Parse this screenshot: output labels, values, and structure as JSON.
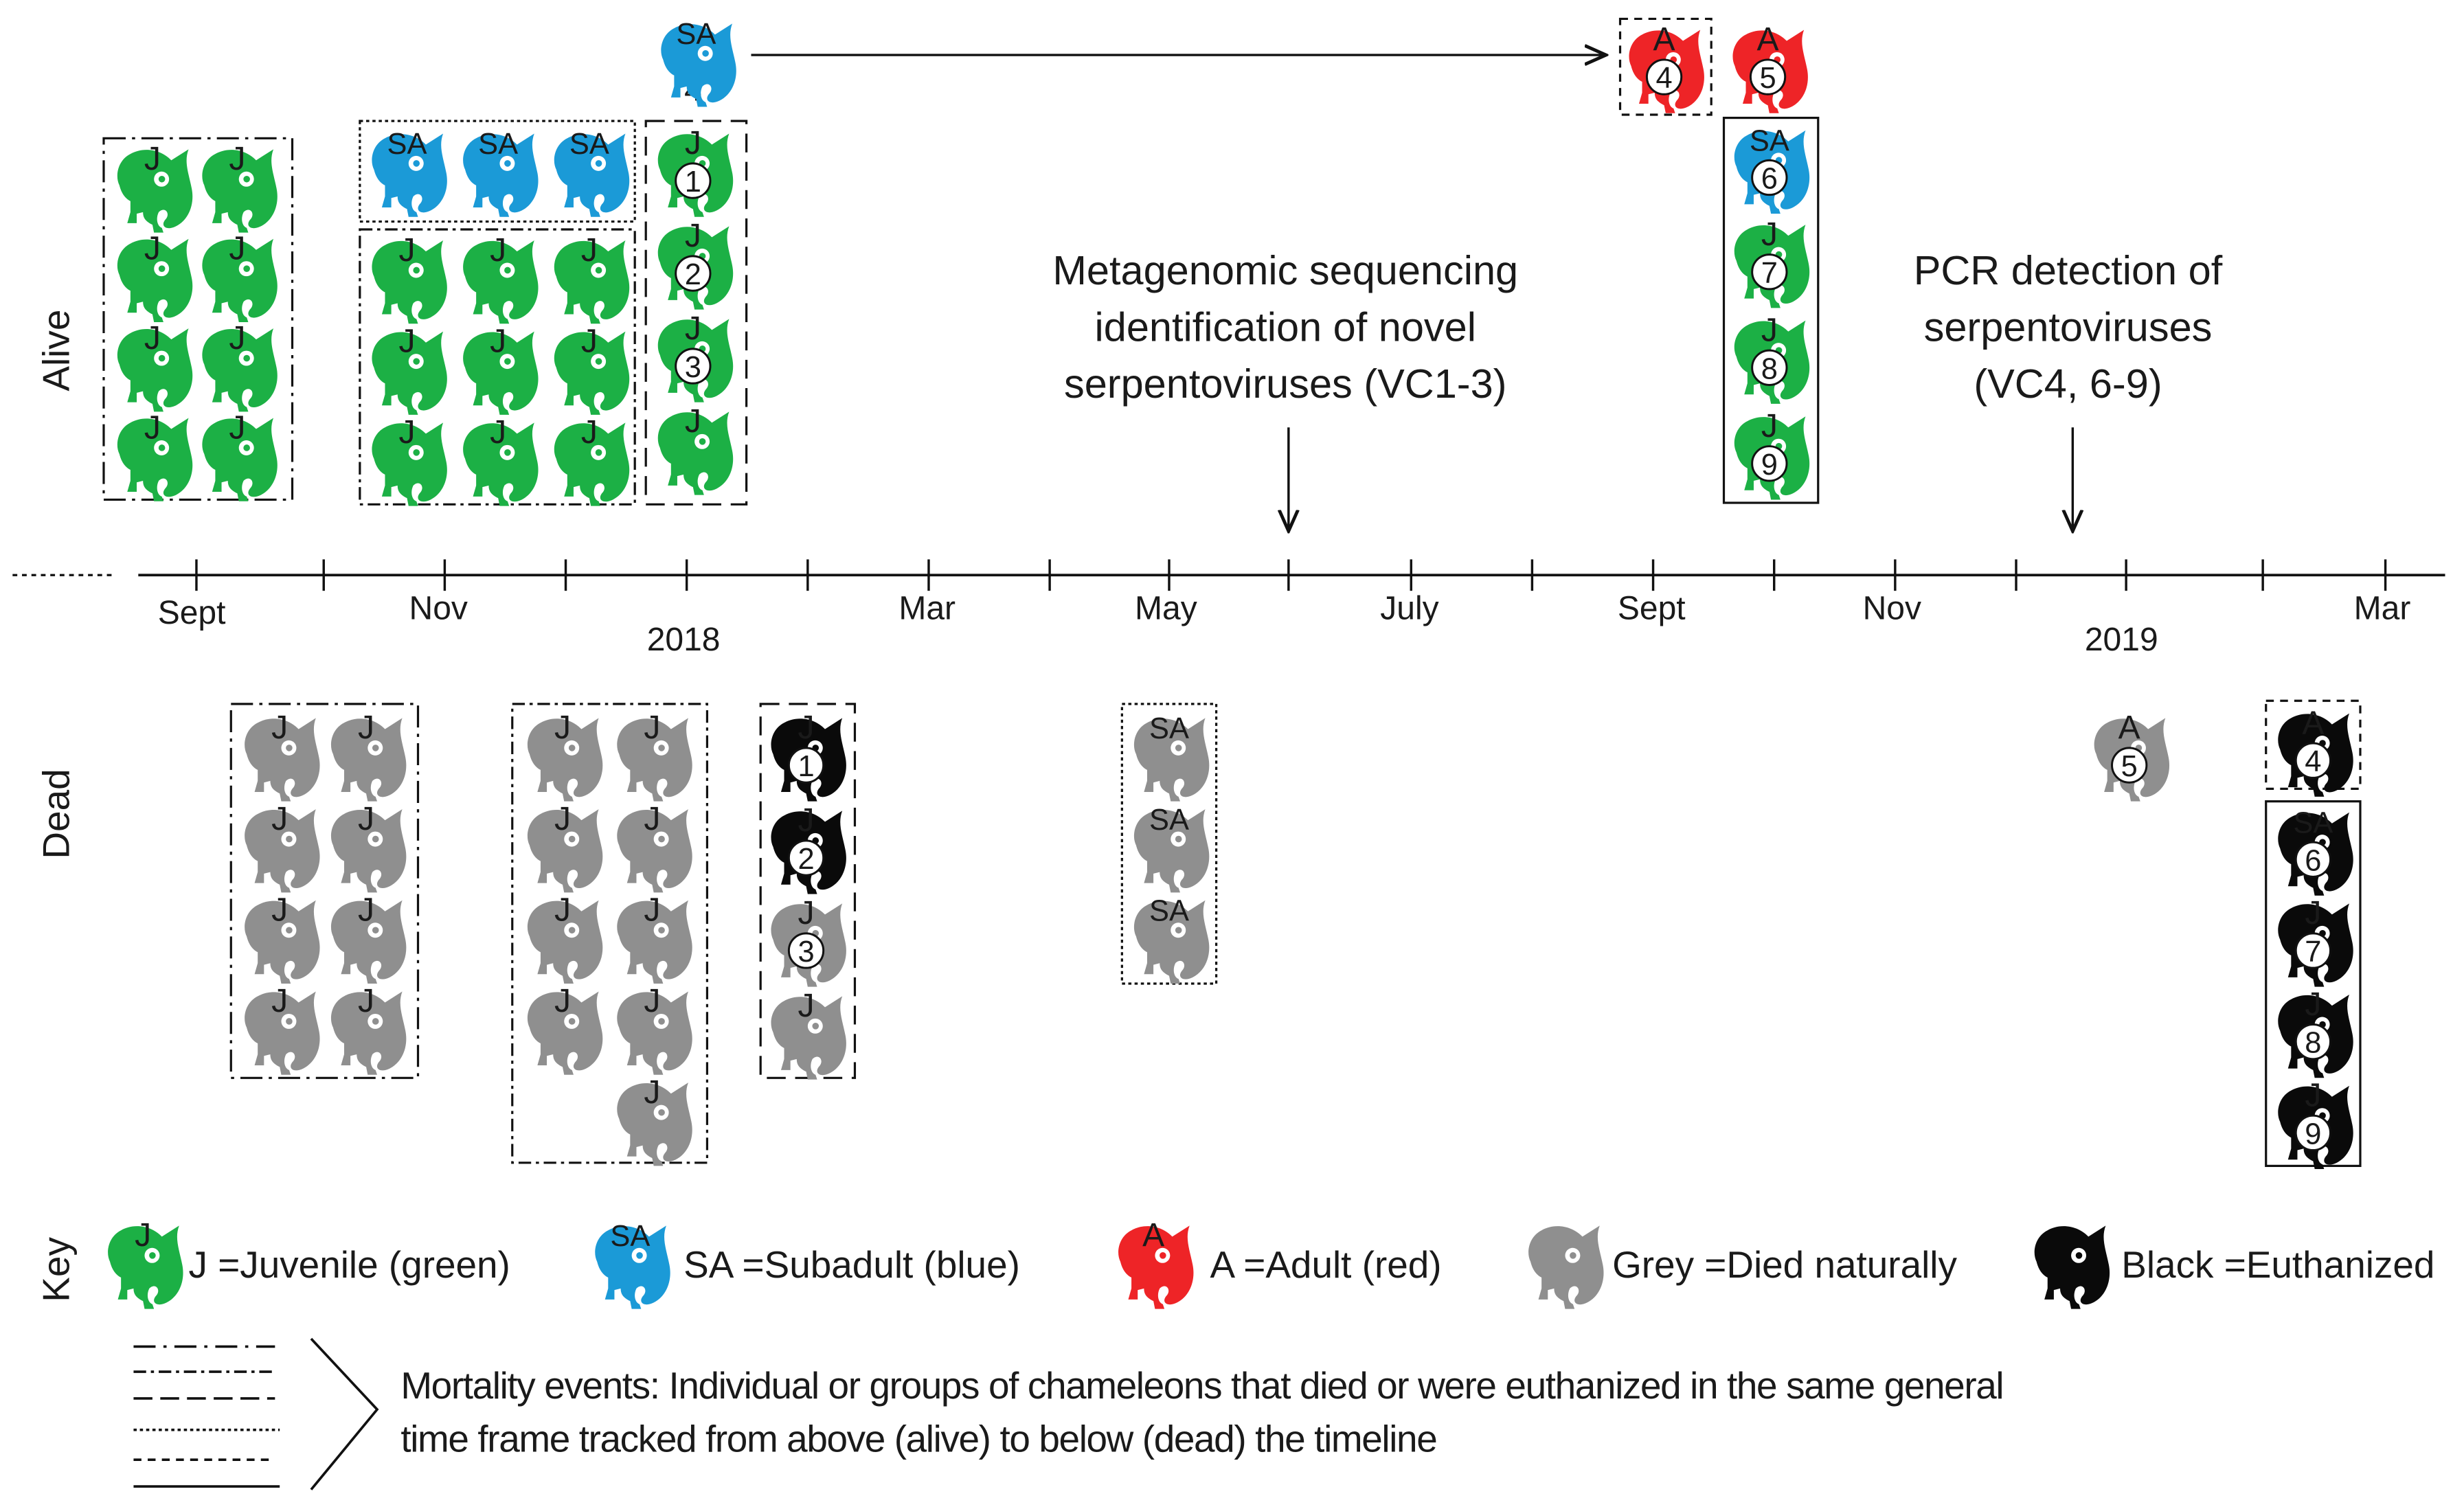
{
  "section_labels": {
    "alive": "Alive",
    "dead": "Dead",
    "key": "Key"
  },
  "timeline": {
    "months": [
      "Sept",
      "Nov",
      "Mar",
      "May",
      "July",
      "Sept",
      "Nov",
      "Mar"
    ],
    "years": [
      "2018",
      "2019"
    ]
  },
  "annotations": {
    "metagenomic": [
      "Metagenomic sequencing",
      "identification of novel",
      "serpentoviruses (VC1-3)"
    ],
    "pcr": [
      "PCR detection of",
      "serpentoviruses",
      "(VC4, 6-9)"
    ]
  },
  "colors": {
    "juvenile": "#1cb045",
    "subadult": "#1b9ad7",
    "adult": "#ee2427",
    "dead_natural": "#8f8f8f",
    "euthanized": "#0a0a0a"
  },
  "chameleon_labels": {
    "juvenile": "J",
    "subadult": "SA",
    "adult": "A"
  },
  "numbered_ids": [
    "1",
    "2",
    "3",
    "4",
    "5",
    "6",
    "7",
    "8",
    "9"
  ],
  "sa_transfer_number": "4",
  "key": {
    "juvenile": "J =Juvenile (green)",
    "subadult": "SA =Subadult (blue)",
    "adult": "A =Adult (red)",
    "grey": "Grey =Died naturally",
    "black": "Black =Euthanized",
    "mortality": [
      "Mortality events: Individual or groups of chameleons that died or were euthanized in the same general",
      "time frame tracked from above (alive) to below (dead) the timeline"
    ]
  }
}
